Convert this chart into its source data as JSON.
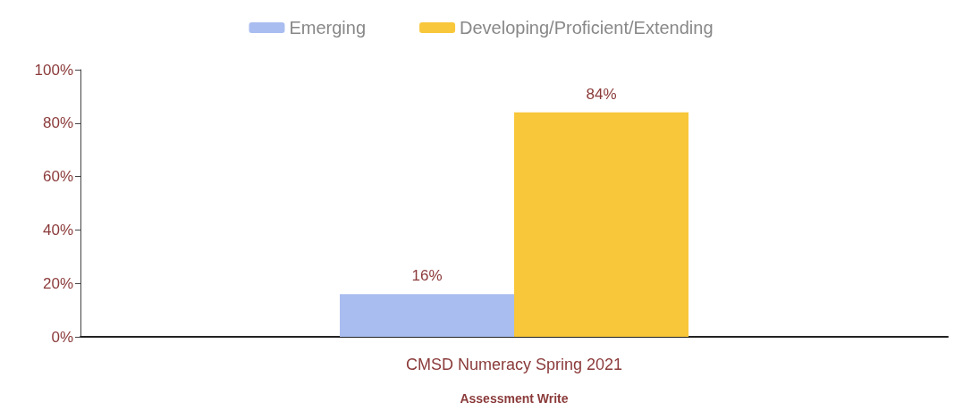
{
  "chart_data": {
    "type": "bar",
    "xlabel": "Assessment Write",
    "categories": [
      "CMSD Numeracy Spring 2021"
    ],
    "series": [
      {
        "name": "Emerging",
        "color": "#a9bdf0",
        "values": [
          16
        ],
        "value_labels": [
          "16%"
        ]
      },
      {
        "name": "Developing/Proficient/Extending",
        "color": "#f8c73a",
        "values": [
          84
        ],
        "value_labels": [
          "84%"
        ]
      }
    ],
    "ylim": [
      0,
      100
    ],
    "yticks": [
      {
        "value": 0,
        "label": "0%"
      },
      {
        "value": 20,
        "label": "20%"
      },
      {
        "value": 40,
        "label": "40%"
      },
      {
        "value": 60,
        "label": "60%"
      },
      {
        "value": 80,
        "label": "80%"
      },
      {
        "value": 100,
        "label": "100%"
      }
    ],
    "grid": false,
    "legend": "top"
  }
}
